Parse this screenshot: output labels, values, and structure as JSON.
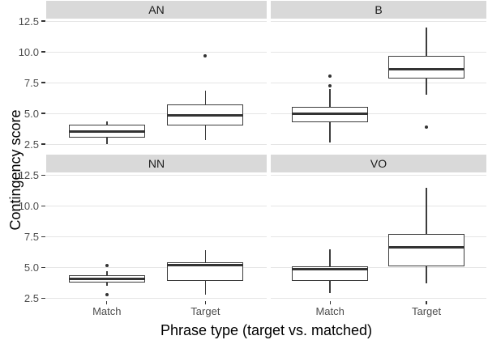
{
  "chart_data": {
    "type": "boxplot",
    "title": "",
    "xlabel": "Phrase type (target vs. matched)",
    "ylabel": "Contingency score",
    "categories": [
      "Match",
      "Target"
    ],
    "y_ticks": [
      {
        "label": "12.5",
        "value": 12.5
      },
      {
        "label": "10.0",
        "value": 10.0
      },
      {
        "label": "7.5",
        "value": 7.5
      },
      {
        "label": "5.0",
        "value": 5.0
      },
      {
        "label": "2.5",
        "value": 2.5
      }
    ],
    "ylim": [
      1.8,
      12.7
    ],
    "grid": "horizontal-major-only",
    "legend_position": "none",
    "facet_layout": "2x2",
    "facets": [
      {
        "label": "AN",
        "row": 0,
        "col": 0,
        "boxes": [
          {
            "category": "Match",
            "whisker_low": 2.5,
            "q1": 3.0,
            "median": 3.5,
            "q3": 4.1,
            "whisker_high": 4.35,
            "outliers": []
          },
          {
            "category": "Target",
            "whisker_low": 2.85,
            "q1": 4.0,
            "median": 4.85,
            "q3": 5.7,
            "whisker_high": 6.85,
            "outliers": [
              9.65
            ]
          }
        ]
      },
      {
        "label": "B",
        "row": 0,
        "col": 1,
        "boxes": [
          {
            "category": "Match",
            "whisker_low": 2.6,
            "q1": 4.3,
            "median": 5.0,
            "q3": 5.5,
            "whisker_high": 7.0,
            "outliers": [
              8.05,
              7.25
            ]
          },
          {
            "category": "Target",
            "whisker_low": 6.5,
            "q1": 7.8,
            "median": 8.6,
            "q3": 9.7,
            "whisker_high": 12.0,
            "outliers": [
              3.9
            ]
          }
        ]
      },
      {
        "label": "NN",
        "row": 1,
        "col": 0,
        "boxes": [
          {
            "category": "Match",
            "whisker_low": 3.5,
            "q1": 3.8,
            "median": 4.1,
            "q3": 4.4,
            "whisker_high": 4.7,
            "outliers": [
              5.15,
              2.8
            ]
          },
          {
            "category": "Target",
            "whisker_low": 2.8,
            "q1": 3.9,
            "median": 5.2,
            "q3": 5.45,
            "whisker_high": 6.45,
            "outliers": []
          }
        ]
      },
      {
        "label": "VO",
        "row": 1,
        "col": 1,
        "boxes": [
          {
            "category": "Match",
            "whisker_low": 2.95,
            "q1": 3.9,
            "median": 4.85,
            "q3": 5.1,
            "whisker_high": 6.5,
            "outliers": []
          },
          {
            "category": "Target",
            "whisker_low": 3.7,
            "q1": 5.1,
            "median": 6.65,
            "q3": 7.75,
            "whisker_high": 11.5,
            "outliers": []
          }
        ]
      }
    ],
    "colors": {
      "strip_background": "#d9d9d9",
      "strip_text": "#1a1a1a",
      "panel_background": "#ffffff",
      "gridline": "#e5e5e5",
      "box_stroke": "#3d3d3d",
      "box_fill": "#ffffff",
      "median": "#333333",
      "outlier": "#333333",
      "axis_text": "#4d4d4d",
      "axis_title": "#000000"
    }
  }
}
